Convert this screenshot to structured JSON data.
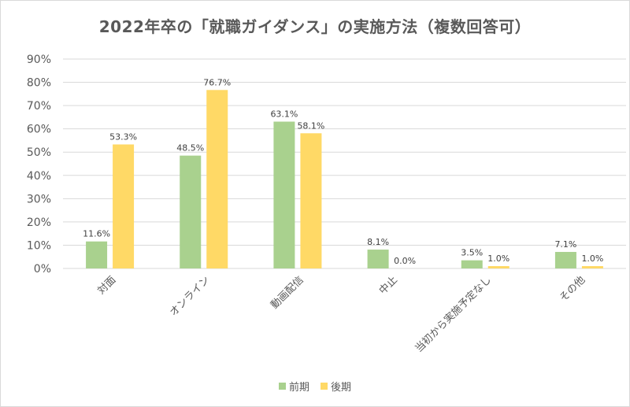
{
  "colors": {
    "前期": "#a9d18e",
    "後期": "#ffd966",
    "grid": "#d9d9d9",
    "text": "#595959"
  },
  "chart_data": {
    "type": "bar",
    "title": "2022年卒の「就職ガイダンス」の実施方法（複数回答可）",
    "categories": [
      "対面",
      "オンライン",
      "動画配信",
      "中止",
      "当初から実施予定なし",
      "その他"
    ],
    "series": [
      {
        "name": "前期",
        "values": [
          11.6,
          48.5,
          63.1,
          8.1,
          3.5,
          7.1
        ]
      },
      {
        "name": "後期",
        "values": [
          53.3,
          76.7,
          58.1,
          0.0,
          1.0,
          1.0
        ]
      }
    ],
    "yticks": [
      "0%",
      "10%",
      "20%",
      "30%",
      "40%",
      "50%",
      "60%",
      "70%",
      "80%",
      "90%"
    ],
    "ylim": [
      0,
      90
    ],
    "grid": true,
    "legend": "bottom"
  }
}
